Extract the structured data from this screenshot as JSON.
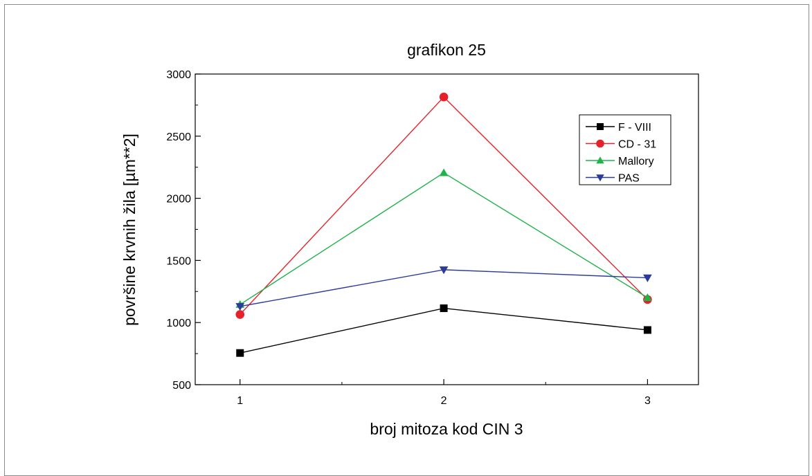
{
  "chart_data": {
    "type": "line",
    "title": "grafikon 25",
    "xlabel": "broj mitoza kod CIN 3",
    "ylabel": "površine krvnih žila  [µm**2]",
    "x": [
      1,
      2,
      3
    ],
    "x_tick_labels": [
      "1",
      "2",
      "3"
    ],
    "xlim": [
      0.78,
      3.25
    ],
    "ylim": [
      500,
      3000
    ],
    "y_ticks": [
      500,
      1000,
      1500,
      2000,
      2500,
      3000
    ],
    "y_tick_labels": [
      "500",
      "1000",
      "1500",
      "2000",
      "2500",
      "3000"
    ],
    "grid": false,
    "legend_position": "top-right",
    "series": [
      {
        "name": "F - VIII",
        "values": [
          755,
          1115,
          940
        ],
        "color": "#000000",
        "marker": "square"
      },
      {
        "name": "CD - 31",
        "values": [
          1065,
          2815,
          1185
        ],
        "color": "#e8202a",
        "marker": "circle"
      },
      {
        "name": "Mallory",
        "values": [
          1145,
          2205,
          1200
        ],
        "color": "#1fb34a",
        "marker": "triangle-up"
      },
      {
        "name": "PAS",
        "values": [
          1130,
          1425,
          1360
        ],
        "color": "#2b3a9b",
        "marker": "triangle-down"
      }
    ]
  }
}
